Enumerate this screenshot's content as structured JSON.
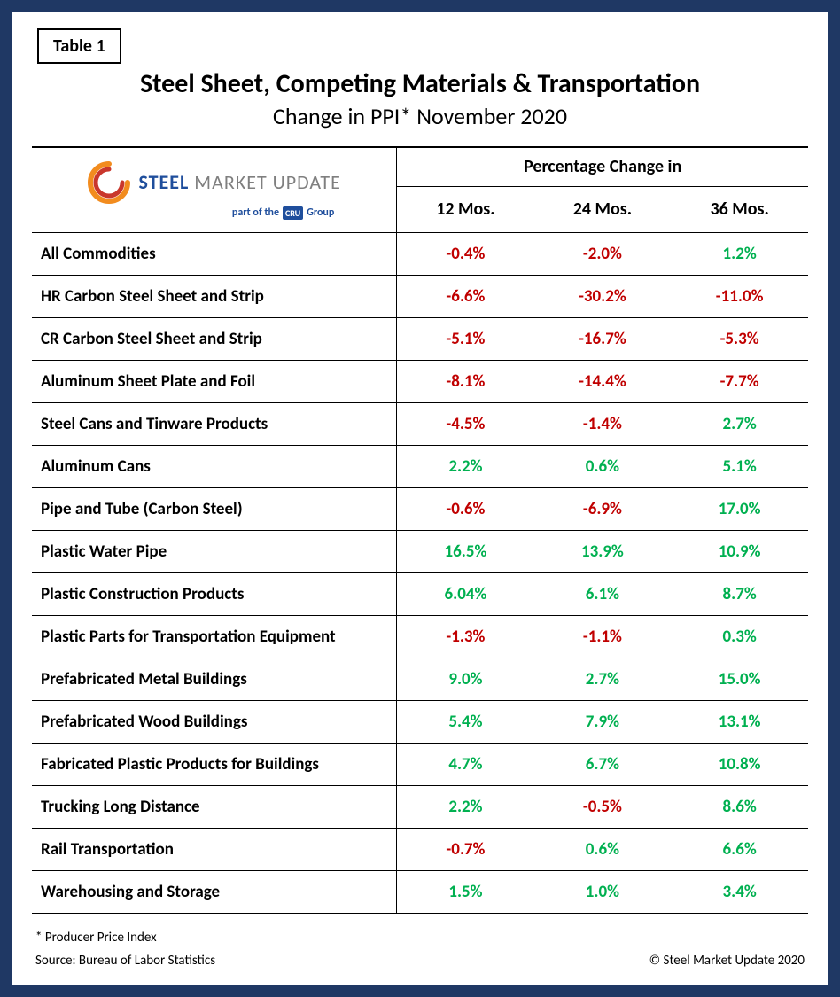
{
  "table_label": "Table 1",
  "title": "Steel Sheet, Competing Materials & Transportation",
  "subtitle": "Change in PPI* November 2020",
  "logo": {
    "word1": "STEEL",
    "word2": "MARKET",
    "word3": "UPDATE",
    "subline_prefix": "part of the",
    "subline_badge": "CRU",
    "subline_suffix": "Group",
    "swoosh_colors": {
      "outer": "#f28c1f",
      "inner": "#c9372c"
    }
  },
  "header": {
    "group_label": "Percentage Change in",
    "columns": [
      "12 Mos.",
      "24 Mos.",
      "36 Mos."
    ]
  },
  "rows": [
    {
      "label": "All Commodities",
      "v": [
        "-0.4%",
        "-2.0%",
        "1.2%"
      ]
    },
    {
      "label": "HR Carbon Steel Sheet and Strip",
      "v": [
        "-6.6%",
        "-30.2%",
        "-11.0%"
      ]
    },
    {
      "label": "CR Carbon Steel Sheet and Strip",
      "v": [
        "-5.1%",
        "-16.7%",
        "-5.3%"
      ]
    },
    {
      "label": "Aluminum Sheet Plate and Foil",
      "v": [
        "-8.1%",
        "-14.4%",
        "-7.7%"
      ]
    },
    {
      "label": "Steel Cans and Tinware Products",
      "v": [
        "-4.5%",
        "-1.4%",
        "2.7%"
      ]
    },
    {
      "label": "Aluminum Cans",
      "v": [
        "2.2%",
        "0.6%",
        "5.1%"
      ]
    },
    {
      "label": "Pipe and Tube (Carbon Steel)",
      "v": [
        "-0.6%",
        "-6.9%",
        "17.0%"
      ]
    },
    {
      "label": "Plastic Water Pipe",
      "v": [
        "16.5%",
        "13.9%",
        "10.9%"
      ]
    },
    {
      "label": "Plastic Construction Products",
      "v": [
        "6.04%",
        "6.1%",
        "8.7%"
      ]
    },
    {
      "label": "Plastic Parts for Transportation Equipment",
      "v": [
        "-1.3%",
        "-1.1%",
        "0.3%"
      ]
    },
    {
      "label": "Prefabricated Metal Buildings",
      "v": [
        "9.0%",
        "2.7%",
        "15.0%"
      ]
    },
    {
      "label": "Prefabricated Wood Buildings",
      "v": [
        "5.4%",
        "7.9%",
        "13.1%"
      ]
    },
    {
      "label": "Fabricated Plastic Products for Buildings",
      "v": [
        "4.7%",
        "6.7%",
        "10.8%"
      ]
    },
    {
      "label": "Trucking Long Distance",
      "v": [
        "2.2%",
        "-0.5%",
        "8.6%"
      ]
    },
    {
      "label": "Rail Transportation",
      "v": [
        "-0.7%",
        "0.6%",
        "6.6%"
      ]
    },
    {
      "label": "Warehousing and Storage",
      "v": [
        "1.5%",
        "1.0%",
        "3.4%"
      ]
    }
  ],
  "footer": {
    "note": "* Producer Price Index",
    "source": "Source: Bureau of Labor Statistics",
    "copyright": "© Steel Market Update 2020"
  },
  "colors": {
    "positive": "#00b050",
    "negative": "#c00000",
    "frame": "#1f3864"
  }
}
